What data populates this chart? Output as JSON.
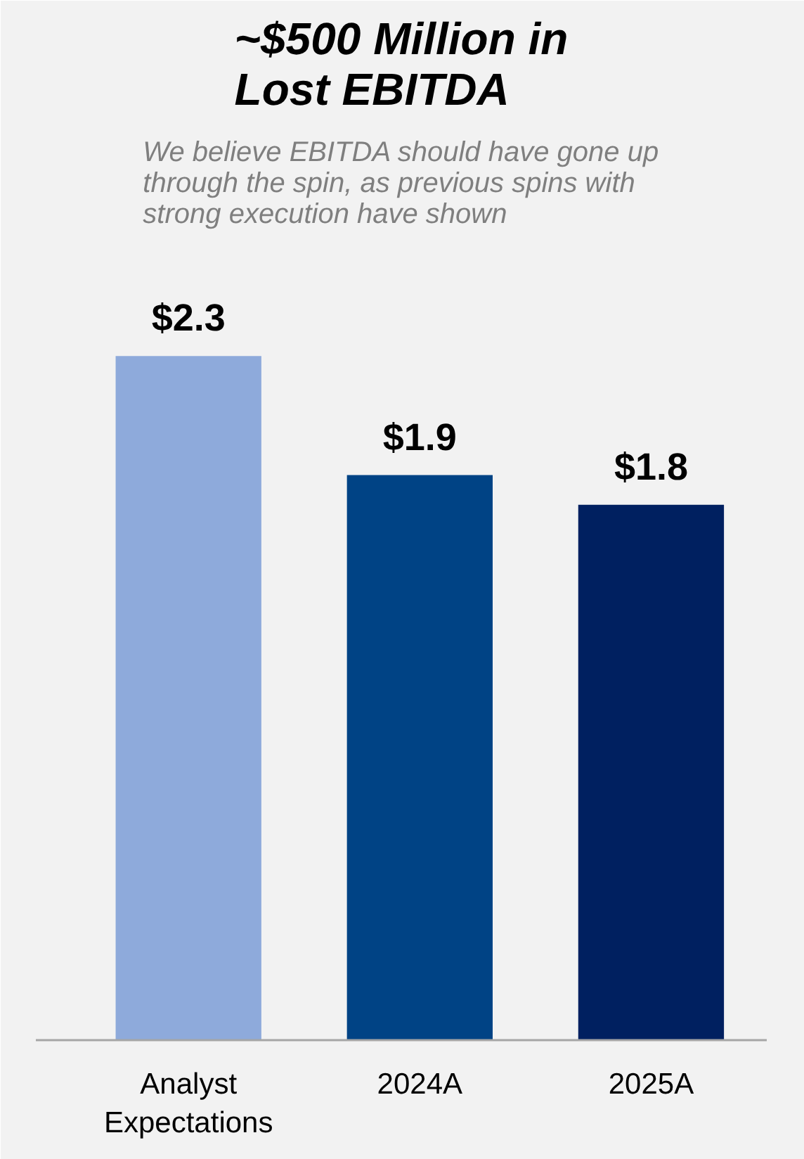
{
  "chart_data": {
    "type": "bar",
    "title": "~$500 Million in Lost EBITDA",
    "subtitle": "We believe EBITDA should have gone up through the spin, as previous spins with strong execution have shown",
    "categories": [
      "Analyst Expectations",
      "2024A",
      "2025A"
    ],
    "values": [
      2.3,
      1.9,
      1.8
    ],
    "colors": [
      "#8eaadb",
      "#004385",
      "#002060"
    ],
    "value_labels": [
      "$2.3",
      "$1.9",
      "$1.8"
    ],
    "grid": false
  }
}
